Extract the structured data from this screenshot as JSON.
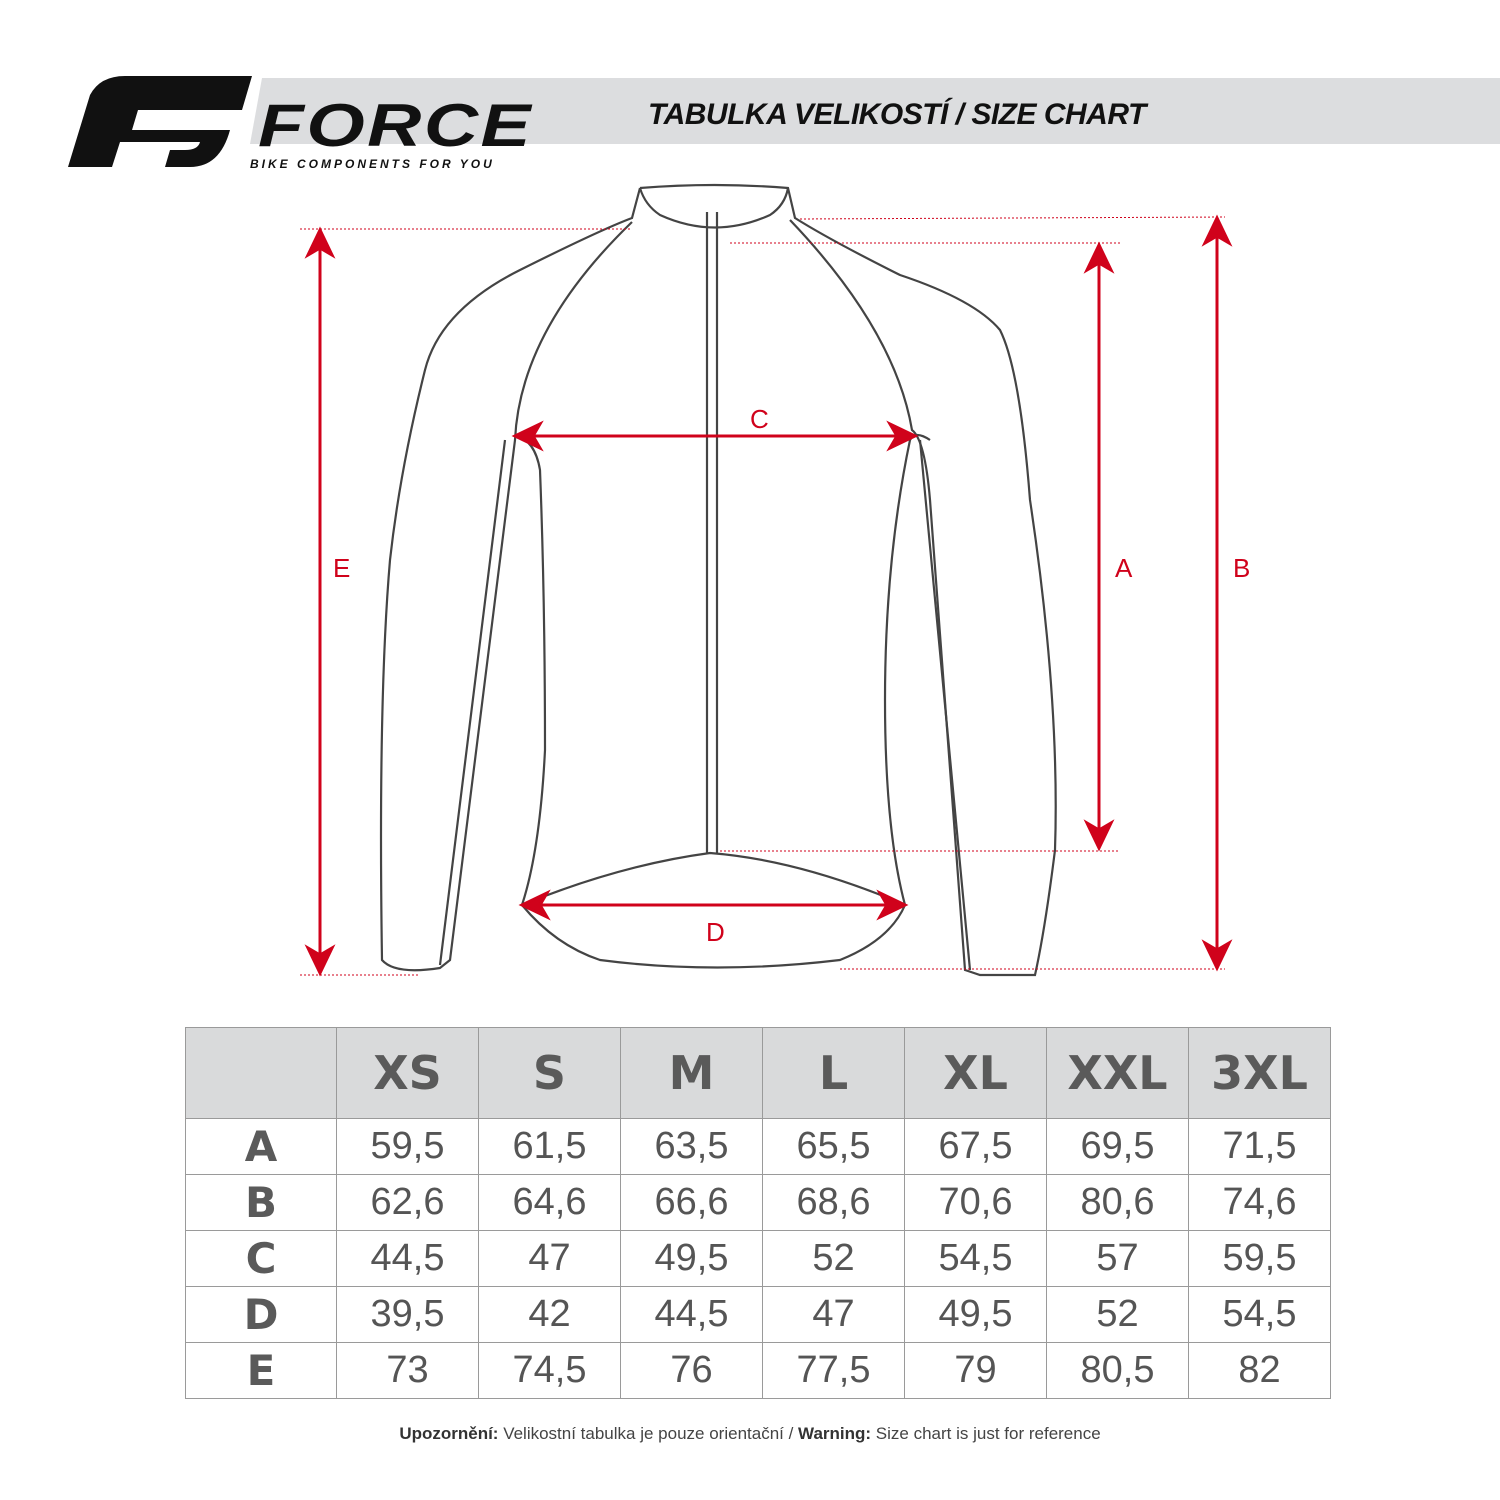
{
  "logo": {
    "word": "FORCE",
    "tagline": "BIKE COMPONENTS FOR YOU"
  },
  "title": "TABULKA VELIKOSTÍ / SIZE CHART",
  "diagram": {
    "labels": {
      "A": "A",
      "B": "B",
      "C": "C",
      "D": "D",
      "E": "E"
    },
    "accent_color": "#d0021b"
  },
  "table": {
    "sizes": [
      "XS",
      "S",
      "M",
      "L",
      "XL",
      "XXL",
      "3XL"
    ],
    "rows": [
      {
        "label": "A",
        "values": [
          "59,5",
          "61,5",
          "63,5",
          "65,5",
          "67,5",
          "69,5",
          "71,5"
        ]
      },
      {
        "label": "B",
        "values": [
          "62,6",
          "64,6",
          "66,6",
          "68,6",
          "70,6",
          "80,6",
          "74,6"
        ]
      },
      {
        "label": "C",
        "values": [
          "44,5",
          "47",
          "49,5",
          "52",
          "54,5",
          "57",
          "59,5"
        ]
      },
      {
        "label": "D",
        "values": [
          "39,5",
          "42",
          "44,5",
          "47",
          "49,5",
          "52",
          "54,5"
        ]
      },
      {
        "label": "E",
        "values": [
          "73",
          "74,5",
          "76",
          "77,5",
          "79",
          "80,5",
          "82"
        ]
      }
    ]
  },
  "note": {
    "cz_label": "Upozornění:",
    "cz_text": " Velikostní tabulka je pouze orientační / ",
    "en_label": "Warning:",
    "en_text": " Size chart is just for reference"
  }
}
